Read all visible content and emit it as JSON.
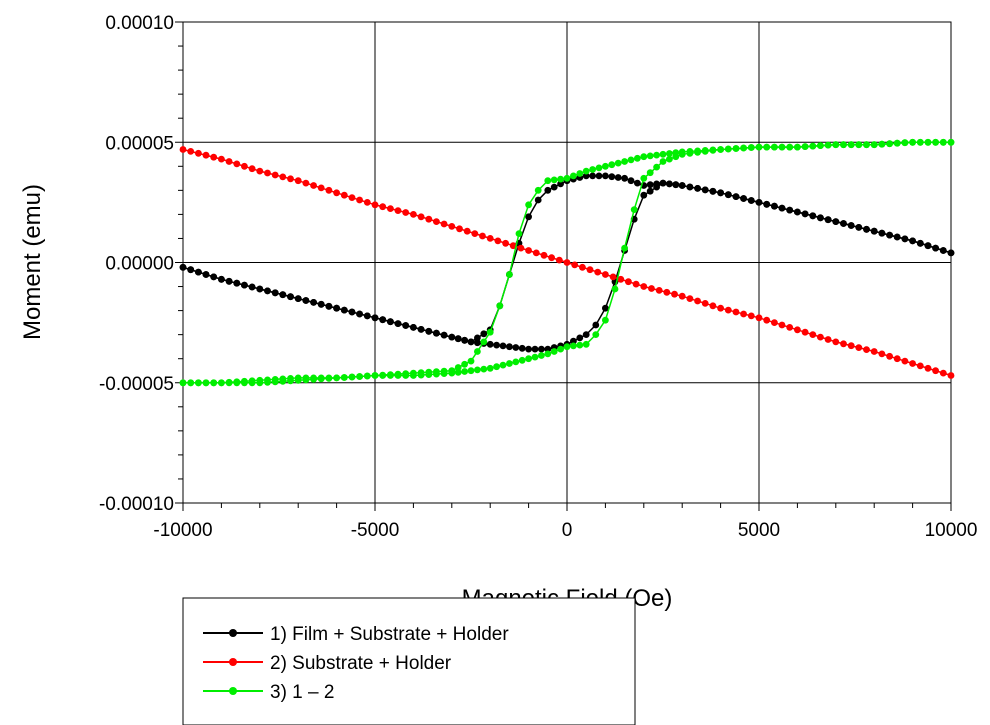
{
  "chart_data": {
    "type": "scatter",
    "xlabel": "Magnetic Field (Oe)",
    "ylabel": "Moment (emu)",
    "xlim": [
      -10000,
      10000
    ],
    "ylim": [
      -0.0001,
      0.0001
    ],
    "x_ticks": [
      -10000,
      -5000,
      0,
      5000,
      10000
    ],
    "x_tick_labels": [
      "-10000",
      "-5000",
      "0",
      "5000",
      "10000"
    ],
    "y_ticks": [
      -0.0001,
      -5e-05,
      0,
      5e-05,
      0.0001
    ],
    "y_tick_labels": [
      "-0.00010",
      "-0.00005",
      "0.00000",
      "0.00005",
      "0.00010"
    ],
    "grid": true,
    "legend_position": "bottom-left, below plot",
    "series": [
      {
        "name": "1)  Film + Substrate + Holder",
        "color": "#000000",
        "marker": "circle",
        "line": true,
        "branches": [
          {
            "x": [
              -10000,
              -9000,
              -8000,
              -7000,
              -6000,
              -5000,
              -4000,
              -3000,
              -2500,
              -2000,
              -1750,
              -1500,
              -1250,
              -1000,
              -750,
              -500,
              0,
              500,
              1000,
              1500,
              2000,
              2500,
              3000,
              4000,
              5000,
              6000,
              7000,
              8000,
              9000,
              10000
            ],
            "y": [
              -2e-06,
              -7e-06,
              -1.1e-05,
              -1.5e-05,
              -1.9e-05,
              -2.3e-05,
              -2.7e-05,
              -3.1e-05,
              -3.3e-05,
              -2.8e-05,
              -1.8e-05,
              -5e-06,
              8e-06,
              1.9e-05,
              2.6e-05,
              3e-05,
              3.4e-05,
              3.6e-05,
              3.6e-05,
              3.5e-05,
              3.2e-05,
              3.3e-05,
              3.2e-05,
              2.9e-05,
              2.5e-05,
              2.1e-05,
              1.7e-05,
              1.3e-05,
              9e-06,
              4e-06
            ]
          },
          {
            "x": [
              10000,
              9000,
              8000,
              7000,
              6000,
              5000,
              4000,
              3000,
              2500,
              2000,
              1750,
              1500,
              1250,
              1000,
              750,
              500,
              0,
              -500,
              -1000,
              -1500,
              -2000,
              -2500,
              -3000,
              -4000,
              -5000,
              -6000,
              -7000,
              -8000,
              -9000,
              -10000
            ],
            "y": [
              4e-06,
              9e-06,
              1.3e-05,
              1.7e-05,
              2.1e-05,
              2.5e-05,
              2.9e-05,
              3.2e-05,
              3.3e-05,
              2.8e-05,
              1.8e-05,
              5e-06,
              -8e-06,
              -1.9e-05,
              -2.6e-05,
              -3e-05,
              -3.4e-05,
              -3.6e-05,
              -3.6e-05,
              -3.5e-05,
              -3.4e-05,
              -3.3e-05,
              -3.1e-05,
              -2.7e-05,
              -2.3e-05,
              -1.9e-05,
              -1.5e-05,
              -1.1e-05,
              -7e-06,
              -2e-06
            ]
          }
        ]
      },
      {
        "name": "2)  Substrate + Holder",
        "color": "#ff0000",
        "marker": "circle",
        "line": true,
        "branches": [
          {
            "x": [
              -10000,
              -9000,
              -8000,
              -7000,
              -6000,
              -5000,
              -4000,
              -3000,
              -2000,
              -1000,
              0,
              1000,
              2000,
              3000,
              4000,
              5000,
              6000,
              7000,
              8000,
              9000,
              10000
            ],
            "y": [
              4.7e-05,
              4.3e-05,
              3.8e-05,
              3.4e-05,
              2.9e-05,
              2.4e-05,
              2e-05,
              1.5e-05,
              1e-05,
              5e-06,
              0,
              -5e-06,
              -1e-05,
              -1.4e-05,
              -1.9e-05,
              -2.3e-05,
              -2.8e-05,
              -3.3e-05,
              -3.7e-05,
              -4.2e-05,
              -4.7e-05
            ]
          }
        ]
      },
      {
        "name": "3) 1 – 2",
        "color": "#00ee00",
        "marker": "circle",
        "line": true,
        "branches": [
          {
            "x": [
              -10000,
              -9000,
              -8000,
              -7000,
              -6000,
              -5000,
              -4000,
              -3000,
              -2500,
              -2000,
              -1750,
              -1500,
              -1250,
              -1000,
              -750,
              -500,
              0,
              500,
              1000,
              1500,
              2000,
              2500,
              3000,
              4000,
              5000,
              6000,
              7000,
              8000,
              9000,
              10000
            ],
            "y": [
              -5e-05,
              -5e-05,
              -4.9e-05,
              -4.8e-05,
              -4.8e-05,
              -4.7e-05,
              -4.6e-05,
              -4.5e-05,
              -4.1e-05,
              -2.9e-05,
              -1.8e-05,
              -5e-06,
              1.2e-05,
              2.4e-05,
              3e-05,
              3.4e-05,
              3.5e-05,
              3.8e-05,
              4e-05,
              4.2e-05,
              4.4e-05,
              4.5e-05,
              4.6e-05,
              4.7e-05,
              4.8e-05,
              4.8e-05,
              4.9e-05,
              4.9e-05,
              5e-05,
              5e-05
            ]
          },
          {
            "x": [
              10000,
              9000,
              8000,
              7000,
              6000,
              5000,
              4000,
              3000,
              2500,
              2000,
              1750,
              1500,
              1250,
              1000,
              750,
              500,
              0,
              -500,
              -1000,
              -1500,
              -2000,
              -2500,
              -3000,
              -4000,
              -5000,
              -6000,
              -7000,
              -8000,
              -9000,
              -10000
            ],
            "y": [
              5e-05,
              5e-05,
              4.9e-05,
              4.9e-05,
              4.8e-05,
              4.8e-05,
              4.7e-05,
              4.5e-05,
              4.2e-05,
              3.5e-05,
              2.2e-05,
              6e-06,
              -1.1e-05,
              -2.4e-05,
              -3e-05,
              -3.4e-05,
              -3.5e-05,
              -3.8e-05,
              -4e-05,
              -4.2e-05,
              -4.4e-05,
              -4.5e-05,
              -4.6e-05,
              -4.7e-05,
              -4.7e-05,
              -4.8e-05,
              -4.9e-05,
              -5e-05,
              -5e-05,
              -5e-05
            ]
          }
        ]
      }
    ]
  }
}
